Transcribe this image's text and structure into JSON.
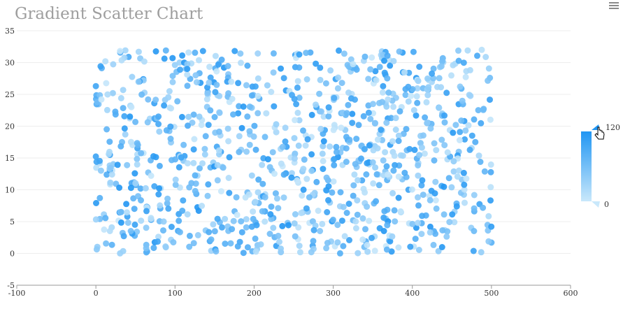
{
  "toolbar": {
    "menu_icon": "hamburger-menu-icon"
  },
  "colors": {
    "low": "#c9e8fb",
    "high": "#2196f3",
    "grid": "#eeeeee",
    "axis": "#999999"
  },
  "chart_data": {
    "type": "scatter",
    "title": "Gradient Scatter Chart",
    "xlabel": "",
    "ylabel": "",
    "xlim": [
      -100,
      600
    ],
    "ylim": [
      -5,
      35
    ],
    "x_ticks": [
      -100,
      0,
      100,
      200,
      300,
      400,
      500,
      600
    ],
    "y_ticks": [
      -5,
      0,
      5,
      10,
      15,
      20,
      25,
      30,
      35
    ],
    "grid": true,
    "color_scale": {
      "min": 0,
      "max": 120,
      "min_label": "0",
      "max_label": "120",
      "placement": "right"
    },
    "point_count": 1000,
    "x_range": [
      0,
      500
    ],
    "y_range": [
      0,
      32
    ],
    "points_sample": [
      [
        0,
        26.3
      ],
      [
        5,
        8.7
      ],
      [
        12,
        30.2
      ],
      [
        20,
        4.1
      ],
      [
        33,
        17.5
      ],
      [
        48,
        11.2
      ],
      [
        60,
        27.4
      ],
      [
        79,
        2.6
      ],
      [
        95,
        22.8
      ],
      [
        112,
        15.3
      ],
      [
        130,
        6.7
      ],
      [
        151,
        29.1
      ],
      [
        167,
        19.6
      ],
      [
        182,
        1.8
      ],
      [
        199,
        24.9
      ],
      [
        214,
        9.3
      ],
      [
        236,
        13.7
      ],
      [
        252,
        31.2
      ],
      [
        270,
        4.8
      ],
      [
        288,
        21.5
      ],
      [
        305,
        16.1
      ],
      [
        322,
        28.6
      ],
      [
        340,
        7.9
      ],
      [
        357,
        12.4
      ],
      [
        371,
        30.4
      ],
      [
        389,
        18.8
      ],
      [
        404,
        2.3
      ],
      [
        420,
        25.7
      ],
      [
        437,
        10.6
      ],
      [
        455,
        20.2
      ],
      [
        470,
        31.9
      ],
      [
        486,
        14.4
      ],
      [
        500,
        1.7
      ]
    ]
  }
}
